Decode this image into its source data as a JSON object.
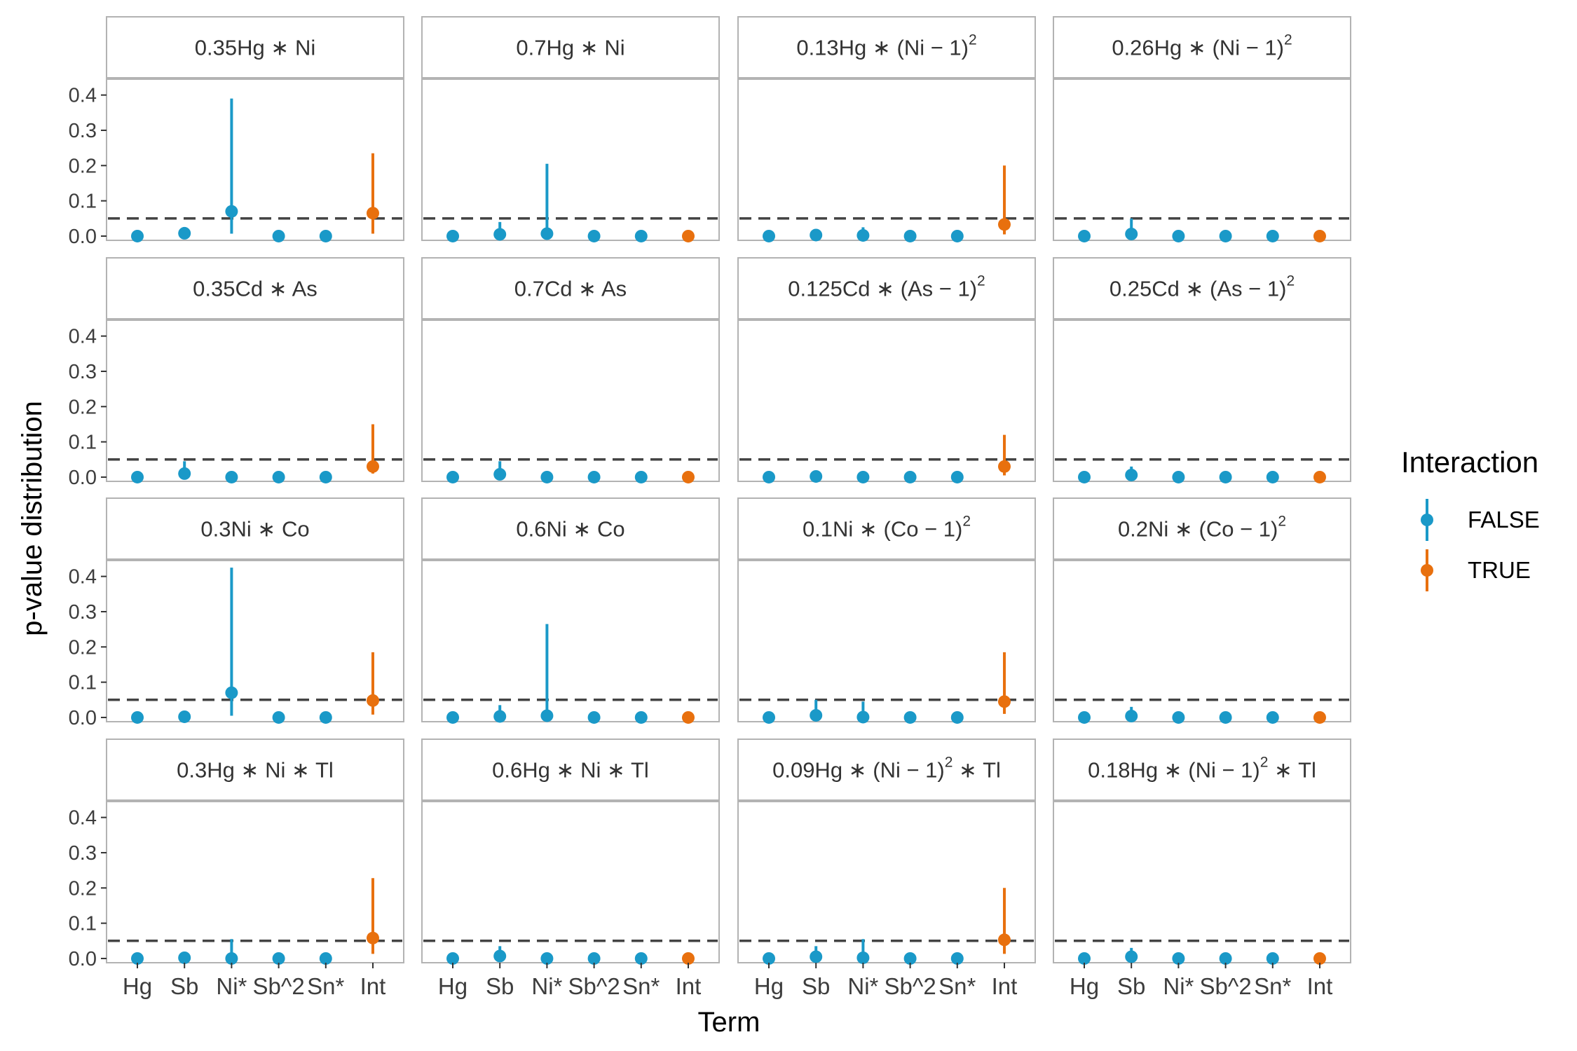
{
  "chart_data": {
    "type": "scatter",
    "xlabel": "Term",
    "ylabel": "p-value distribution",
    "x_categories": [
      "Hg",
      "Sb",
      "Ni*",
      "Sb^2",
      "Sn*",
      "Int"
    ],
    "y_ticks": [
      "0.0",
      "0.1",
      "0.2",
      "0.3",
      "0.4"
    ],
    "ylim": [
      -0.012,
      0.445
    ],
    "reference_line": 0.05,
    "grid": false,
    "legend": {
      "title": "Interaction",
      "position": "right",
      "entries": [
        {
          "label": "FALSE",
          "color": "#1a99c8"
        },
        {
          "label": "TRUE",
          "color": "#e8700e"
        }
      ]
    },
    "panels": [
      {
        "label": {
          "main": "0.35Hg ∗ Ni"
        },
        "points": [
          [
            0.0,
            0.0,
            0.0
          ],
          [
            0.008,
            0.0,
            0.02
          ],
          [
            0.07,
            0.007,
            0.39
          ],
          [
            0.0,
            0.0,
            0.0
          ],
          [
            0.0,
            0.0,
            0.0
          ],
          [
            0.065,
            0.007,
            0.235
          ]
        ]
      },
      {
        "label": {
          "main": "0.7Hg ∗ Ni"
        },
        "points": [
          [
            0.0,
            0.0,
            0.0
          ],
          [
            0.005,
            0.0,
            0.04
          ],
          [
            0.007,
            0.0,
            0.205
          ],
          [
            0.0,
            0.0,
            0.0
          ],
          [
            0.0,
            0.0,
            0.0
          ],
          [
            0.0,
            0.0,
            0.0
          ]
        ]
      },
      {
        "label": {
          "main": "0.13Hg ∗ (Ni − 1)",
          "sup": "2"
        },
        "points": [
          [
            0.0,
            0.0,
            0.0
          ],
          [
            0.003,
            0.0,
            0.02
          ],
          [
            0.002,
            0.0,
            0.025
          ],
          [
            0.0,
            0.0,
            0.0
          ],
          [
            0.0,
            0.0,
            0.0
          ],
          [
            0.033,
            0.005,
            0.2
          ]
        ]
      },
      {
        "label": {
          "main": "0.26Hg ∗ (Ni − 1)",
          "sup": "2"
        },
        "points": [
          [
            0.0,
            0.0,
            0.0
          ],
          [
            0.006,
            0.0,
            0.05
          ],
          [
            0.0,
            0.0,
            0.0
          ],
          [
            0.0,
            0.0,
            0.0
          ],
          [
            0.0,
            0.0,
            0.0
          ],
          [
            0.0,
            0.0,
            0.0
          ]
        ]
      },
      {
        "label": {
          "main": "0.35Cd ∗ As"
        },
        "points": [
          [
            0.0,
            0.0,
            0.0
          ],
          [
            0.01,
            0.0,
            0.045
          ],
          [
            0.0,
            0.0,
            0.0
          ],
          [
            0.0,
            0.0,
            0.0
          ],
          [
            0.0,
            0.0,
            0.0
          ],
          [
            0.03,
            0.01,
            0.15
          ]
        ]
      },
      {
        "label": {
          "main": "0.7Cd ∗ As"
        },
        "points": [
          [
            0.0,
            0.0,
            0.0
          ],
          [
            0.008,
            0.0,
            0.045
          ],
          [
            0.0,
            0.0,
            0.0
          ],
          [
            0.0,
            0.0,
            0.0
          ],
          [
            0.0,
            0.0,
            0.0
          ],
          [
            0.0,
            0.0,
            0.0
          ]
        ]
      },
      {
        "label": {
          "main": "0.125Cd ∗ (As − 1)",
          "sup": "2"
        },
        "points": [
          [
            0.0,
            0.0,
            0.0
          ],
          [
            0.002,
            0.0,
            0.015
          ],
          [
            0.0,
            0.0,
            0.0
          ],
          [
            0.0,
            0.0,
            0.0
          ],
          [
            0.0,
            0.0,
            0.0
          ],
          [
            0.03,
            0.005,
            0.12
          ]
        ]
      },
      {
        "label": {
          "main": "0.25Cd ∗ (As − 1)",
          "sup": "2"
        },
        "points": [
          [
            0.0,
            0.0,
            0.0
          ],
          [
            0.006,
            0.0,
            0.03
          ],
          [
            0.0,
            0.0,
            0.0
          ],
          [
            0.0,
            0.0,
            0.0
          ],
          [
            0.0,
            0.0,
            0.0
          ],
          [
            0.0,
            0.0,
            0.0
          ]
        ]
      },
      {
        "label": {
          "main": "0.3Ni ∗ Co"
        },
        "points": [
          [
            0.0,
            0.0,
            0.0
          ],
          [
            0.002,
            0.0,
            0.01
          ],
          [
            0.07,
            0.005,
            0.425
          ],
          [
            0.0,
            0.0,
            0.0
          ],
          [
            0.0,
            0.0,
            0.0
          ],
          [
            0.048,
            0.008,
            0.185
          ]
        ]
      },
      {
        "label": {
          "main": "0.6Ni ∗ Co"
        },
        "points": [
          [
            0.0,
            0.0,
            0.0
          ],
          [
            0.003,
            0.0,
            0.035
          ],
          [
            0.005,
            0.0,
            0.265
          ],
          [
            0.0,
            0.0,
            0.0
          ],
          [
            0.0,
            0.0,
            0.0
          ],
          [
            0.0,
            0.0,
            0.0
          ]
        ]
      },
      {
        "label": {
          "main": "0.1Ni ∗ (Co − 1)",
          "sup": "2"
        },
        "points": [
          [
            0.0,
            0.0,
            0.0
          ],
          [
            0.006,
            0.0,
            0.05
          ],
          [
            0.001,
            0.0,
            0.045
          ],
          [
            0.0,
            0.0,
            0.0
          ],
          [
            0.0,
            0.0,
            0.0
          ],
          [
            0.045,
            0.01,
            0.185
          ]
        ]
      },
      {
        "label": {
          "main": "0.2Ni ∗ (Co − 1)",
          "sup": "2"
        },
        "points": [
          [
            0.0,
            0.0,
            0.0
          ],
          [
            0.004,
            0.0,
            0.03
          ],
          [
            0.0,
            0.0,
            0.0
          ],
          [
            0.0,
            0.0,
            0.0
          ],
          [
            0.0,
            0.0,
            0.0
          ],
          [
            0.0,
            0.0,
            0.0
          ]
        ]
      },
      {
        "label": {
          "main": "0.3Hg ∗ Ni ∗ Tl"
        },
        "points": [
          [
            0.0,
            0.0,
            0.0
          ],
          [
            0.002,
            0.0,
            0.01
          ],
          [
            0.0,
            0.0,
            0.055
          ],
          [
            0.0,
            0.0,
            0.0
          ],
          [
            0.0,
            0.0,
            0.0
          ],
          [
            0.058,
            0.013,
            0.228
          ]
        ]
      },
      {
        "label": {
          "main": "0.6Hg ∗ Ni ∗ Tl"
        },
        "points": [
          [
            0.0,
            0.0,
            0.0
          ],
          [
            0.007,
            0.0,
            0.035
          ],
          [
            0.0,
            0.0,
            0.0
          ],
          [
            0.0,
            0.0,
            0.0
          ],
          [
            0.0,
            0.0,
            0.0
          ],
          [
            0.0,
            0.0,
            0.0
          ]
        ]
      },
      {
        "label": {
          "main": "0.09Hg ∗ (Ni − 1)",
          "sup": "2",
          "tail": " ∗ Tl"
        },
        "points": [
          [
            0.0,
            0.0,
            0.0
          ],
          [
            0.005,
            0.0,
            0.035
          ],
          [
            0.002,
            0.0,
            0.055
          ],
          [
            0.0,
            0.0,
            0.0
          ],
          [
            0.0,
            0.0,
            0.0
          ],
          [
            0.053,
            0.013,
            0.2
          ]
        ]
      },
      {
        "label": {
          "main": "0.18Hg ∗ (Ni − 1)",
          "sup": "2",
          "tail": " ∗ Tl"
        },
        "points": [
          [
            0.0,
            0.0,
            0.0
          ],
          [
            0.005,
            0.0,
            0.03
          ],
          [
            0.0,
            0.0,
            0.0
          ],
          [
            0.0,
            0.0,
            0.0
          ],
          [
            0.0,
            0.0,
            0.0
          ],
          [
            0.0,
            0.0,
            0.0
          ]
        ]
      }
    ]
  }
}
